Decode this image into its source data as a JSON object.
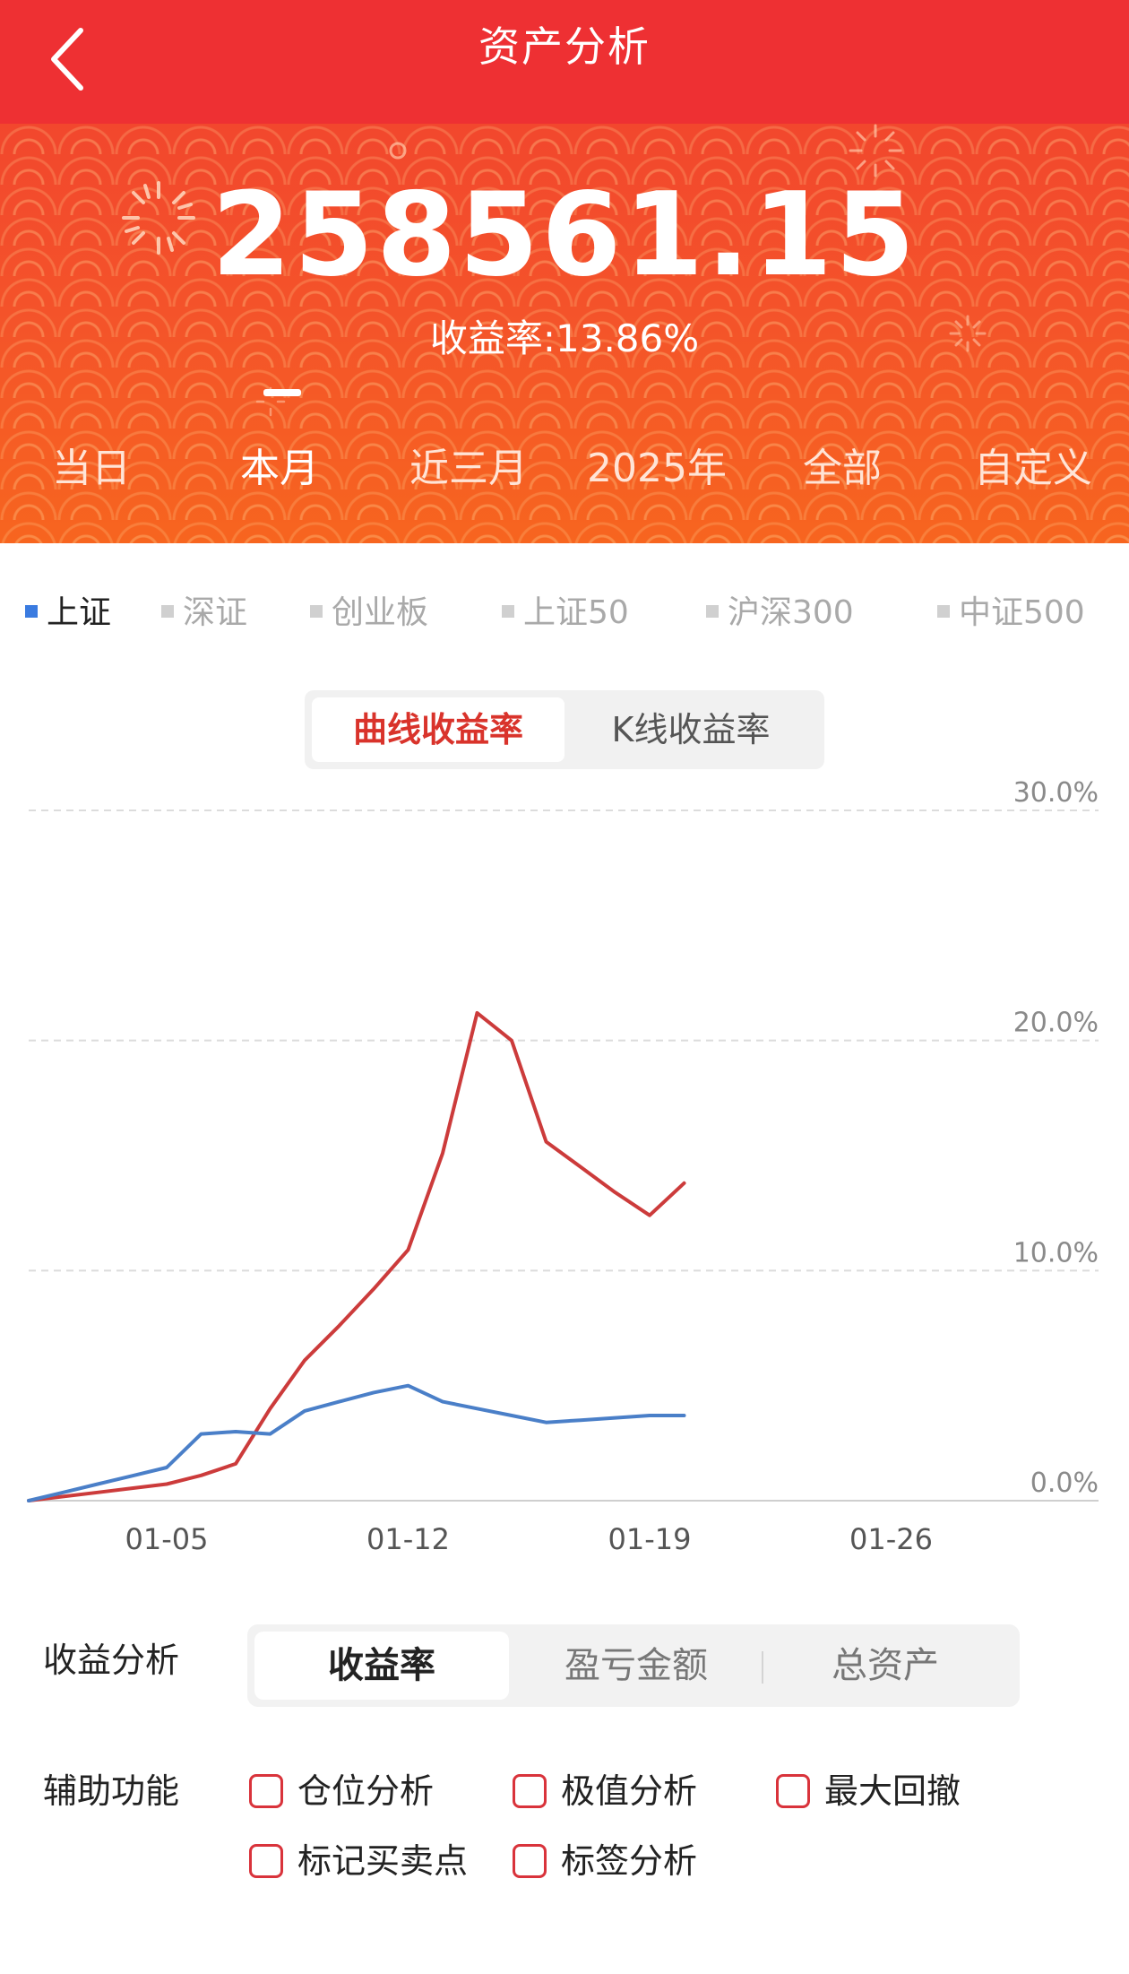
{
  "header": {
    "title": "资产分析",
    "back_icon": "chevron-left-icon"
  },
  "summary": {
    "total_assets": "258561.15",
    "return_rate": "收益率:13.86%"
  },
  "periods": [
    "当日",
    "本月",
    "近三月",
    "2025年",
    "全部",
    "自定义"
  ],
  "active_period": "本月",
  "indices": [
    "上证",
    "深证",
    "创业板",
    "上证50",
    "沪深300",
    "中证500"
  ],
  "active_index": "上证",
  "chart_modes": [
    "曲线收益率",
    "K线收益率"
  ],
  "active_chart_mode": "曲线收益率",
  "chart_data": {
    "type": "line",
    "x": [
      "01-01",
      "01-02",
      "01-03",
      "01-04",
      "01-05",
      "01-06",
      "01-07",
      "01-08",
      "01-09",
      "01-10",
      "01-11",
      "01-12",
      "01-13",
      "01-14",
      "01-15",
      "01-16",
      "01-17",
      "01-18",
      "01-19",
      "01-20"
    ],
    "x_ticks": [
      "01-05",
      "01-12",
      "01-19",
      "01-26"
    ],
    "y_ticks": [
      "0.0%",
      "10.0%",
      "20.0%",
      "30.0%"
    ],
    "ylim": [
      0,
      30
    ],
    "grid": true,
    "series": [
      {
        "color": "#cc3b3b",
        "values": [
          0.0,
          0.18,
          0.36,
          0.54,
          0.72,
          1.1,
          1.6,
          4.0,
          6.1,
          7.6,
          9.2,
          10.9,
          15.1,
          21.2,
          20.0,
          15.6,
          14.5,
          13.4,
          12.4,
          13.8
        ]
      },
      {
        "color": "#4a7fc8",
        "values": [
          0.0,
          0.36,
          0.72,
          1.08,
          1.44,
          2.9,
          3.0,
          2.9,
          3.9,
          4.3,
          4.7,
          5.0,
          4.3,
          4.0,
          3.7,
          3.4,
          3.5,
          3.6,
          3.7,
          3.7
        ]
      }
    ]
  },
  "analysis": {
    "label": "收益分析",
    "options": [
      "收益率",
      "盈亏金额",
      "总资产"
    ],
    "active": "收益率"
  },
  "aux": {
    "label": "辅助功能",
    "options": [
      "仓位分析",
      "极值分析",
      "最大回撤",
      "标记买卖点",
      "标签分析"
    ]
  },
  "colors": {
    "brand_red": "#ee3033",
    "hero_orange": "#f4532a",
    "line_red": "#cc3b3b",
    "line_blue": "#4a7fc8"
  }
}
